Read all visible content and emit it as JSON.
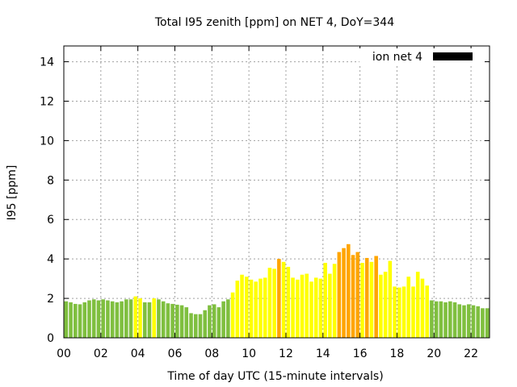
{
  "chart_data": {
    "type": "bar",
    "title": "Total I95 zenith [ppm] on NET 4, DoY=344",
    "xlabel": "Time of day UTC (15-minute intervals)",
    "ylabel": "I95 [ppm]",
    "legend": {
      "label": "ion net 4",
      "color": "#000000",
      "placement": "top-right"
    },
    "xlim": [
      0,
      23
    ],
    "ylim": [
      0,
      14.8
    ],
    "x_tick_labels": [
      "00",
      "02",
      "04",
      "06",
      "08",
      "10",
      "12",
      "14",
      "16",
      "18",
      "20",
      "22"
    ],
    "x_tick_values": [
      0,
      2,
      4,
      6,
      8,
      10,
      12,
      14,
      16,
      18,
      20,
      22
    ],
    "y_tick_labels": [
      "0",
      "2",
      "4",
      "6",
      "8",
      "10",
      "12",
      "14"
    ],
    "y_tick_values": [
      0,
      2,
      4,
      6,
      8,
      10,
      12,
      14
    ],
    "grid": true,
    "interval_hours": 0.25,
    "colors": {
      "green": "#7fbf3f",
      "yellow": "#ffff00",
      "orange": "#ffa500"
    },
    "values": [
      1.85,
      1.8,
      1.72,
      1.7,
      1.8,
      1.9,
      1.95,
      1.9,
      1.95,
      1.9,
      1.85,
      1.8,
      1.85,
      1.95,
      1.95,
      2.1,
      2.0,
      1.8,
      1.8,
      2.0,
      1.95,
      1.85,
      1.75,
      1.72,
      1.68,
      1.65,
      1.55,
      1.25,
      1.2,
      1.2,
      1.4,
      1.65,
      1.7,
      1.55,
      1.85,
      1.95,
      2.3,
      2.9,
      3.2,
      3.1,
      2.95,
      2.85,
      3.0,
      3.05,
      3.55,
      3.5,
      4.0,
      3.85,
      3.6,
      3.05,
      2.95,
      3.2,
      3.25,
      2.85,
      3.05,
      3.0,
      3.8,
      3.25,
      3.75,
      4.35,
      4.55,
      4.75,
      4.2,
      4.35,
      3.8,
      4.05,
      3.85,
      4.15,
      3.2,
      3.35,
      3.9,
      2.6,
      2.55,
      2.6,
      3.1,
      2.6,
      3.35,
      3.0,
      2.65,
      1.9,
      1.85,
      1.85,
      1.8,
      1.85,
      1.8,
      1.7,
      1.65,
      1.7,
      1.65,
      1.6,
      1.5,
      1.5
    ],
    "bar_colors": [
      "green",
      "green",
      "green",
      "green",
      "green",
      "green",
      "green",
      "green",
      "green",
      "green",
      "green",
      "green",
      "green",
      "green",
      "green",
      "yellow",
      "yellow",
      "green",
      "green",
      "yellow",
      "green",
      "green",
      "green",
      "green",
      "green",
      "green",
      "green",
      "green",
      "green",
      "green",
      "green",
      "green",
      "green",
      "green",
      "green",
      "green",
      "yellow",
      "yellow",
      "yellow",
      "yellow",
      "yellow",
      "yellow",
      "yellow",
      "yellow",
      "yellow",
      "yellow",
      "orange",
      "yellow",
      "yellow",
      "yellow",
      "yellow",
      "yellow",
      "yellow",
      "yellow",
      "yellow",
      "yellow",
      "yellow",
      "yellow",
      "yellow",
      "orange",
      "orange",
      "orange",
      "orange",
      "orange",
      "yellow",
      "orange",
      "yellow",
      "orange",
      "yellow",
      "yellow",
      "yellow",
      "yellow",
      "yellow",
      "yellow",
      "yellow",
      "yellow",
      "yellow",
      "yellow",
      "yellow",
      "green",
      "green",
      "green",
      "green",
      "green",
      "green",
      "green",
      "green",
      "green",
      "green",
      "green",
      "green",
      "green"
    ]
  }
}
